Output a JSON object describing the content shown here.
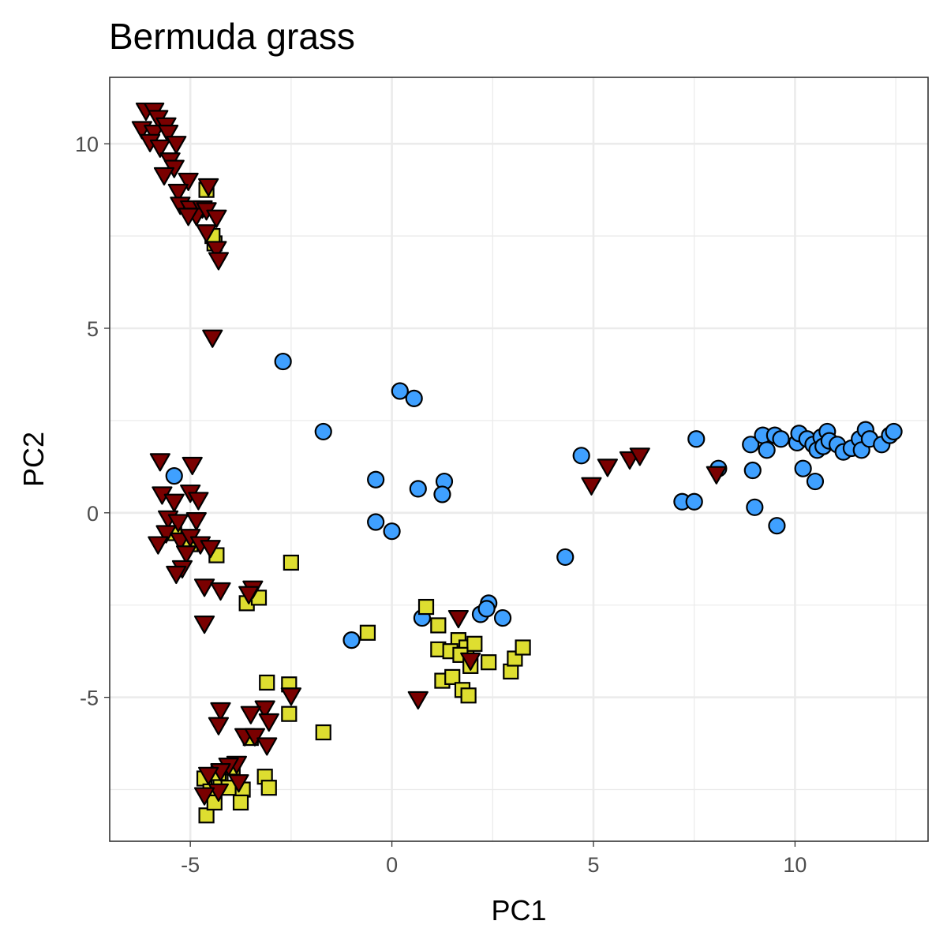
{
  "chart_data": {
    "type": "scatter",
    "title": "Bermuda grass",
    "xlabel": "PC1",
    "ylabel": "PC2",
    "xlim": [
      -7,
      13.3
    ],
    "ylim": [
      -8.9,
      11.8
    ],
    "x_ticks": [
      -5,
      0,
      5,
      10
    ],
    "y_ticks": [
      -5,
      0,
      5,
      10
    ],
    "x_tick_labels": [
      "-5",
      "0",
      "5",
      "10"
    ],
    "y_tick_labels": [
      "-5",
      "0",
      "5",
      "10"
    ],
    "grid": true,
    "legend": "none",
    "series": [
      {
        "shape": "circle",
        "color": "#3fa0ff",
        "points": [
          [
            -2.7,
            4.1
          ],
          [
            0.2,
            3.3
          ],
          [
            0.55,
            3.1
          ],
          [
            -1.7,
            2.2
          ],
          [
            1.3,
            0.85
          ],
          [
            -0.4,
            0.9
          ],
          [
            0.65,
            0.65
          ],
          [
            1.25,
            0.5
          ],
          [
            -0.4,
            -0.25
          ],
          [
            0.0,
            -0.5
          ],
          [
            -5.4,
            1.0
          ],
          [
            4.3,
            -1.2
          ],
          [
            4.7,
            1.55
          ],
          [
            2.4,
            -2.45
          ],
          [
            2.2,
            -2.75
          ],
          [
            2.35,
            -2.6
          ],
          [
            2.75,
            -2.85
          ],
          [
            0.75,
            -2.85
          ],
          [
            -1.0,
            -3.45
          ],
          [
            7.2,
            0.3
          ],
          [
            7.5,
            0.3
          ],
          [
            7.55,
            2.0
          ],
          [
            8.1,
            1.2
          ],
          [
            8.9,
            1.85
          ],
          [
            8.95,
            1.15
          ],
          [
            9.0,
            0.15
          ],
          [
            9.2,
            2.1
          ],
          [
            9.3,
            1.7
          ],
          [
            9.5,
            2.1
          ],
          [
            9.55,
            -0.35
          ],
          [
            9.65,
            2.0
          ],
          [
            10.05,
            1.9
          ],
          [
            10.1,
            2.15
          ],
          [
            10.2,
            1.2
          ],
          [
            10.3,
            2.0
          ],
          [
            10.45,
            1.85
          ],
          [
            10.55,
            1.7
          ],
          [
            10.5,
            0.85
          ],
          [
            10.65,
            2.05
          ],
          [
            10.7,
            1.8
          ],
          [
            10.8,
            2.2
          ],
          [
            10.85,
            1.95
          ],
          [
            11.05,
            1.85
          ],
          [
            11.2,
            1.65
          ],
          [
            11.4,
            1.75
          ],
          [
            11.6,
            2.0
          ],
          [
            11.75,
            2.25
          ],
          [
            11.65,
            1.7
          ],
          [
            11.85,
            2.0
          ],
          [
            12.15,
            1.85
          ],
          [
            12.35,
            2.1
          ],
          [
            12.45,
            2.2
          ]
        ]
      },
      {
        "shape": "square",
        "color": "#dede30",
        "points": [
          [
            -2.5,
            -1.35
          ],
          [
            -4.35,
            -1.15
          ],
          [
            -3.6,
            -2.45
          ],
          [
            -3.3,
            -2.3
          ],
          [
            -5.0,
            -0.85
          ],
          [
            -5.4,
            -0.55
          ],
          [
            -4.6,
            8.75
          ],
          [
            -4.4,
            7.3
          ],
          [
            -4.45,
            7.5
          ],
          [
            -0.6,
            -3.25
          ],
          [
            0.85,
            -2.55
          ],
          [
            1.15,
            -3.05
          ],
          [
            1.15,
            -3.7
          ],
          [
            1.65,
            -3.45
          ],
          [
            1.45,
            -3.75
          ],
          [
            1.85,
            -3.65
          ],
          [
            2.05,
            -3.55
          ],
          [
            1.7,
            -3.85
          ],
          [
            1.95,
            -4.15
          ],
          [
            1.25,
            -4.55
          ],
          [
            1.5,
            -4.45
          ],
          [
            1.75,
            -4.8
          ],
          [
            1.9,
            -4.95
          ],
          [
            2.4,
            -4.05
          ],
          [
            2.95,
            -4.3
          ],
          [
            3.05,
            -3.95
          ],
          [
            3.25,
            -3.65
          ],
          [
            -2.55,
            -4.65
          ],
          [
            -3.1,
            -4.6
          ],
          [
            -2.55,
            -5.45
          ],
          [
            -1.7,
            -5.95
          ],
          [
            -3.5,
            -6.1
          ],
          [
            -4.65,
            -7.2
          ],
          [
            -4.5,
            -7.55
          ],
          [
            -4.25,
            -7.25
          ],
          [
            -3.95,
            -6.9
          ],
          [
            -4.05,
            -7.45
          ],
          [
            -3.7,
            -7.5
          ],
          [
            -3.75,
            -7.85
          ],
          [
            -3.15,
            -7.15
          ],
          [
            -3.05,
            -7.45
          ],
          [
            -4.3,
            -7.05
          ],
          [
            -4.6,
            -8.2
          ],
          [
            -4.4,
            -7.85
          ]
        ]
      },
      {
        "shape": "triangle-down",
        "color": "#7a0000",
        "points": [
          [
            -6.1,
            10.9
          ],
          [
            -5.9,
            10.9
          ],
          [
            -5.8,
            10.7
          ],
          [
            -6.2,
            10.4
          ],
          [
            -5.6,
            10.5
          ],
          [
            -5.9,
            10.3
          ],
          [
            -5.55,
            10.3
          ],
          [
            -6.0,
            10.05
          ],
          [
            -5.75,
            9.9
          ],
          [
            -5.35,
            10.0
          ],
          [
            -5.5,
            9.55
          ],
          [
            -5.4,
            9.35
          ],
          [
            -5.65,
            9.15
          ],
          [
            -5.05,
            9.0
          ],
          [
            -4.55,
            8.85
          ],
          [
            -5.3,
            8.7
          ],
          [
            -5.25,
            8.35
          ],
          [
            -5.0,
            8.25
          ],
          [
            -4.7,
            8.25
          ],
          [
            -4.85,
            8.05
          ],
          [
            -4.6,
            8.2
          ],
          [
            -4.35,
            8.0
          ],
          [
            -5.05,
            8.05
          ],
          [
            -4.6,
            7.6
          ],
          [
            -4.35,
            7.15
          ],
          [
            -4.3,
            6.85
          ],
          [
            -4.45,
            4.75
          ],
          [
            -5.75,
            1.4
          ],
          [
            -4.95,
            1.3
          ],
          [
            -5.7,
            0.5
          ],
          [
            -5.4,
            0.3
          ],
          [
            -5.0,
            0.55
          ],
          [
            -4.8,
            0.35
          ],
          [
            -5.55,
            -0.15
          ],
          [
            -5.3,
            -0.25
          ],
          [
            -4.85,
            -0.2
          ],
          [
            -5.6,
            -0.55
          ],
          [
            -5.25,
            -0.75
          ],
          [
            -5.0,
            -0.65
          ],
          [
            -5.8,
            -0.85
          ],
          [
            -4.75,
            -0.85
          ],
          [
            -4.5,
            -0.95
          ],
          [
            -5.1,
            -1.1
          ],
          [
            -5.2,
            -1.5
          ],
          [
            -5.35,
            -1.65
          ],
          [
            -4.65,
            -2.0
          ],
          [
            -4.25,
            -2.1
          ],
          [
            -3.45,
            -2.05
          ],
          [
            -3.55,
            -2.2
          ],
          [
            -4.65,
            -3.0
          ],
          [
            1.65,
            -2.85
          ],
          [
            1.95,
            -4.0
          ],
          [
            0.65,
            -5.05
          ],
          [
            4.95,
            0.75
          ],
          [
            5.35,
            1.25
          ],
          [
            5.9,
            1.45
          ],
          [
            6.15,
            1.55
          ],
          [
            8.05,
            1.05
          ],
          [
            -2.5,
            -4.95
          ],
          [
            -3.15,
            -5.3
          ],
          [
            -3.05,
            -5.65
          ],
          [
            -3.5,
            -5.45
          ],
          [
            -4.25,
            -5.35
          ],
          [
            -4.3,
            -5.75
          ],
          [
            -3.65,
            -6.05
          ],
          [
            -3.4,
            -6.05
          ],
          [
            -3.1,
            -6.3
          ],
          [
            -3.85,
            -6.8
          ],
          [
            -4.05,
            -6.85
          ],
          [
            -4.25,
            -7.0
          ],
          [
            -4.55,
            -7.1
          ],
          [
            -3.8,
            -7.3
          ],
          [
            -4.3,
            -7.55
          ],
          [
            -4.65,
            -7.65
          ]
        ]
      }
    ]
  }
}
